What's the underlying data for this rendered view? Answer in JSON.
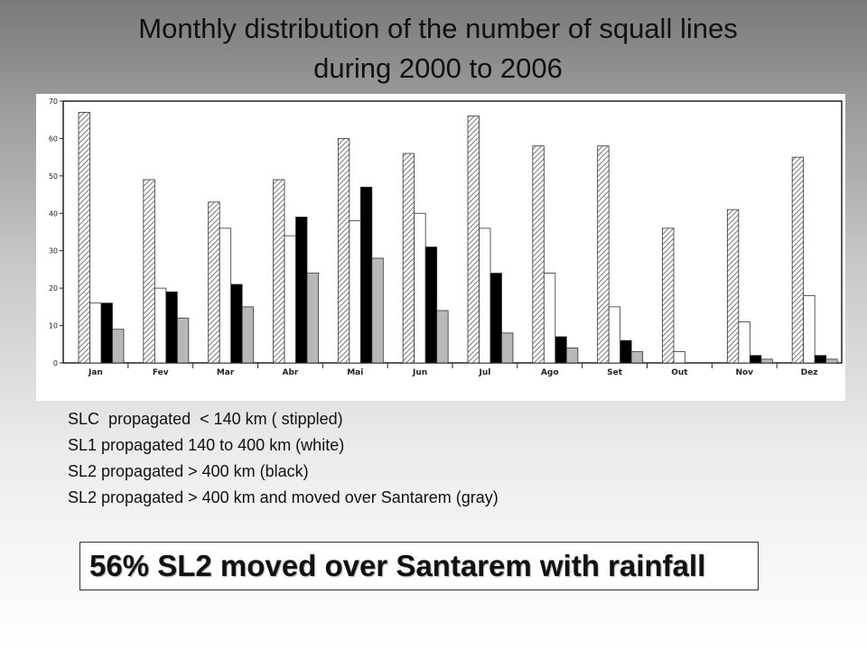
{
  "title": {
    "line1": "Monthly distribution of the number of squall lines",
    "line2": "during 2000 to 2006"
  },
  "legend": [
    "SLC  propagated  < 140 km ( stippled)",
    "SL1 propagated 140 to 400 km (white)",
    "SL2 propagated > 400 km (black)",
    "SL2 propagated > 400 km and moved over Santarem (gray)"
  ],
  "callout": "56% SL2 moved over Santarem with rainfall",
  "chart_data": {
    "type": "bar",
    "categories": [
      "Jan",
      "Fev",
      "Mar",
      "Abr",
      "Mai",
      "Jun",
      "Jul",
      "Ago",
      "Set",
      "Out",
      "Nov",
      "Dez"
    ],
    "series": [
      {
        "name": "SLC",
        "values": [
          67,
          49,
          43,
          49,
          60,
          56,
          66,
          58,
          58,
          36,
          41,
          55
        ],
        "fill": "stippled"
      },
      {
        "name": "SL1",
        "values": [
          16,
          20,
          36,
          34,
          38,
          40,
          36,
          24,
          15,
          3,
          11,
          18
        ],
        "fill": "#ffffff"
      },
      {
        "name": "SL2",
        "values": [
          16,
          19,
          21,
          39,
          47,
          31,
          24,
          7,
          6,
          0,
          2,
          2
        ],
        "fill": "#000000"
      },
      {
        "name": "SL2 Santarem",
        "values": [
          9,
          12,
          15,
          24,
          28,
          14,
          8,
          4,
          3,
          0,
          1,
          1
        ],
        "fill": "#b8b8b8"
      }
    ],
    "yticks": [
      "0",
      "10",
      "20",
      "30",
      "40",
      "50",
      "60",
      "70"
    ],
    "ylim": [
      0,
      70
    ],
    "grid": false
  }
}
